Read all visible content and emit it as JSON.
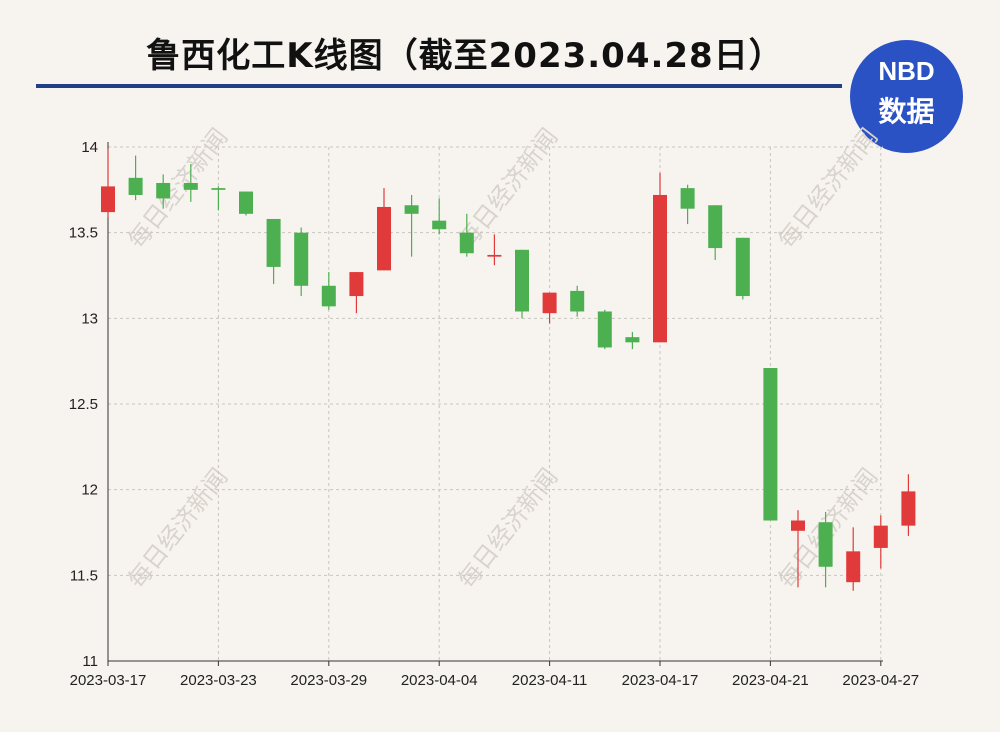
{
  "header": {
    "title": "鲁西化工K线图（截至2023.04.28日）"
  },
  "logo": {
    "line1": "NBD",
    "line2": "数据"
  },
  "watermark_text": "每日经济新闻",
  "colors": {
    "up": "#e03a3a",
    "down": "#4caf50",
    "grid": "#c9c4bd",
    "title_rule": "#1f3f86",
    "logo_bg": "#2a52c4"
  },
  "chart_data": {
    "type": "candlestick",
    "title": "鲁西化工K线图（截至2023.04.28日）",
    "xlabel": "",
    "ylabel": "",
    "ylim": [
      11,
      14
    ],
    "yticks": [
      11,
      11.5,
      12,
      12.5,
      13,
      13.5,
      14
    ],
    "ytick_labels": [
      "11",
      "11.5",
      "12",
      "12.5",
      "13",
      "13.5",
      "14"
    ],
    "xtick_labels": [
      "2023-03-17",
      "2023-03-23",
      "2023-03-29",
      "2023-04-04",
      "2023-04-11",
      "2023-04-17",
      "2023-04-21",
      "2023-04-27"
    ],
    "xtick_index": [
      0,
      4,
      8,
      12,
      16,
      20,
      24,
      28
    ],
    "grid": true,
    "candles": [
      {
        "open": 13.62,
        "close": 13.77,
        "high": 13.99,
        "low": 13.59
      },
      {
        "open": 13.82,
        "close": 13.72,
        "high": 13.95,
        "low": 13.69
      },
      {
        "open": 13.79,
        "close": 13.7,
        "high": 13.84,
        "low": 13.64
      },
      {
        "open": 13.79,
        "close": 13.75,
        "high": 13.9,
        "low": 13.68
      },
      {
        "open": 13.76,
        "close": 13.75,
        "high": 13.77,
        "low": 13.63
      },
      {
        "open": 13.74,
        "close": 13.61,
        "high": 13.74,
        "low": 13.6
      },
      {
        "open": 13.58,
        "close": 13.3,
        "high": 13.58,
        "low": 13.2
      },
      {
        "open": 13.5,
        "close": 13.19,
        "high": 13.53,
        "low": 13.13
      },
      {
        "open": 13.19,
        "close": 13.07,
        "high": 13.27,
        "low": 13.05
      },
      {
        "open": 13.13,
        "close": 13.27,
        "high": 13.27,
        "low": 13.03
      },
      {
        "open": 13.28,
        "close": 13.65,
        "high": 13.76,
        "low": 13.28
      },
      {
        "open": 13.66,
        "close": 13.61,
        "high": 13.72,
        "low": 13.36
      },
      {
        "open": 13.57,
        "close": 13.52,
        "high": 13.7,
        "low": 13.49
      },
      {
        "open": 13.5,
        "close": 13.38,
        "high": 13.61,
        "low": 13.36
      },
      {
        "open": 13.36,
        "close": 13.37,
        "high": 13.49,
        "low": 13.31
      },
      {
        "open": 13.4,
        "close": 13.04,
        "high": 13.4,
        "low": 13.0
      },
      {
        "open": 13.03,
        "close": 13.15,
        "high": 13.15,
        "low": 12.97
      },
      {
        "open": 13.16,
        "close": 13.04,
        "high": 13.19,
        "low": 13.01
      },
      {
        "open": 13.04,
        "close": 12.83,
        "high": 13.05,
        "low": 12.82
      },
      {
        "open": 12.89,
        "close": 12.86,
        "high": 12.92,
        "low": 12.82
      },
      {
        "open": 12.86,
        "close": 13.72,
        "high": 13.85,
        "low": 12.86
      },
      {
        "open": 13.76,
        "close": 13.64,
        "high": 13.78,
        "low": 13.55
      },
      {
        "open": 13.66,
        "close": 13.41,
        "high": 13.66,
        "low": 13.34
      },
      {
        "open": 13.47,
        "close": 13.13,
        "high": 13.47,
        "low": 13.11
      },
      {
        "open": 12.71,
        "close": 11.82,
        "high": 12.71,
        "low": 11.82
      },
      {
        "open": 11.76,
        "close": 11.82,
        "high": 11.88,
        "low": 11.43
      },
      {
        "open": 11.81,
        "close": 11.55,
        "high": 11.87,
        "low": 11.43
      },
      {
        "open": 11.46,
        "close": 11.64,
        "high": 11.78,
        "low": 11.41
      },
      {
        "open": 11.66,
        "close": 11.79,
        "high": 11.85,
        "low": 11.54
      },
      {
        "open": 11.79,
        "close": 11.99,
        "high": 12.09,
        "low": 11.73
      }
    ]
  }
}
